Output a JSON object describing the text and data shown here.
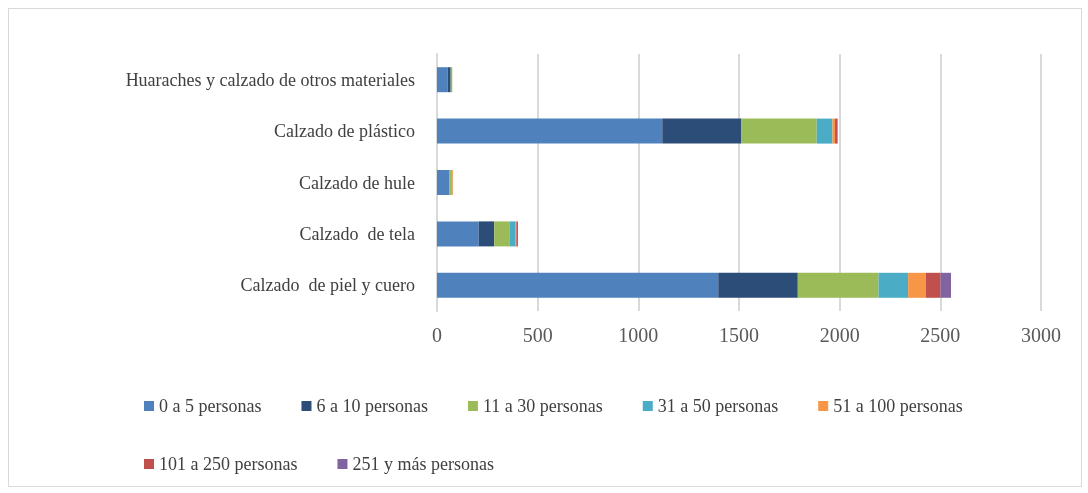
{
  "chart_data": {
    "type": "bar",
    "orientation": "horizontal",
    "stacked": true,
    "categories": [
      "Huaraches y calzado de otros materiales",
      "Calzado de plástico",
      "Calzado de hule",
      "Calzado  de tela",
      "Calzado  de piel y cuero"
    ],
    "series": [
      {
        "name": "0 a 5 personas",
        "color": "#4f81bd",
        "values": [
          53,
          1119,
          60,
          207,
          1397
        ]
      },
      {
        "name": "6 a 10 personas",
        "color": "#2c4d77",
        "values": [
          15,
          393,
          null,
          77,
          395
        ]
      },
      {
        "name": "11 a 30 personas",
        "color": "#9bbb59",
        "values": [
          8,
          374,
          14,
          78,
          401
        ]
      },
      {
        "name": "31 a 50 personas",
        "color": "#4bacc6",
        "values": [
          null,
          78,
          2,
          26,
          147
        ]
      },
      {
        "name": "51 a 100 personas",
        "color": "#f79646",
        "values": [
          0,
          13,
          4,
          6,
          87
        ]
      },
      {
        "name": "101 a 250 personas",
        "color": "#c0504d",
        "values": [
          0,
          13,
          null,
          8,
          74
        ]
      },
      {
        "name": "251 y más personas",
        "color": "#8064a2",
        "values": [
          0,
          0,
          0,
          0,
          52
        ]
      }
    ],
    "xlim": [
      0,
      3000
    ],
    "xticks": [
      0,
      500,
      1000,
      1500,
      2000,
      2500,
      3000
    ],
    "grid": "x",
    "legend": "bottom"
  }
}
